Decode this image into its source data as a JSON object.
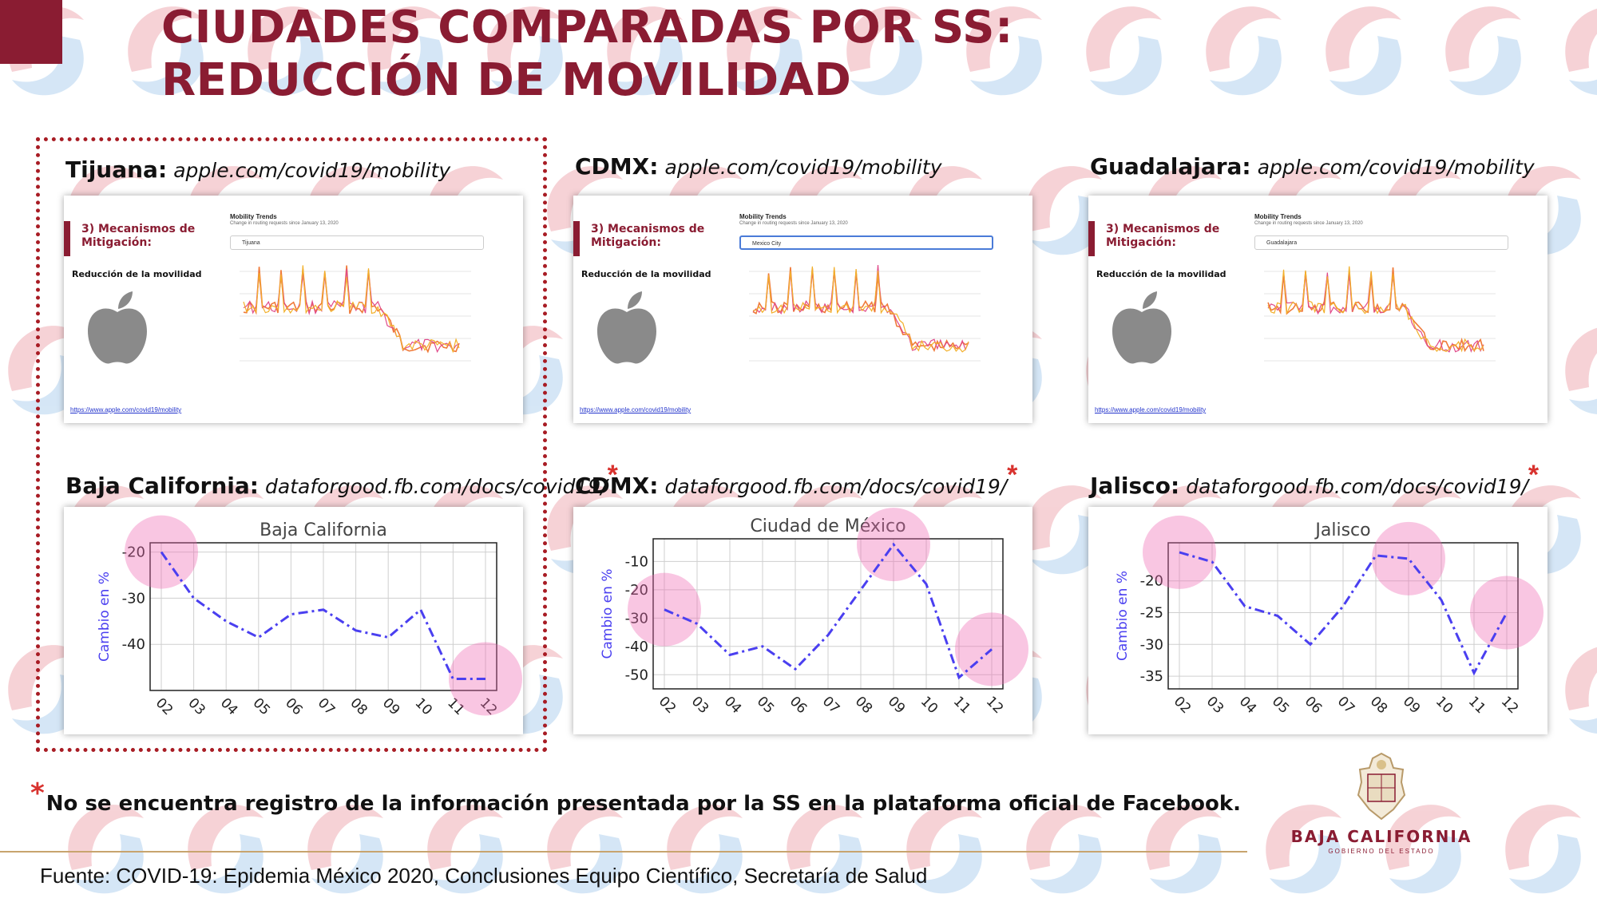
{
  "title_line1": "CIUDADES COMPARADAS POR SS:",
  "title_line2": "REDUCCIÓN DE MOVILIDAD",
  "shots": [
    {
      "city": "Tijuana:",
      "url": "apple.com/covid19/mobility",
      "section": "3) Mecanismos de Mitigación:",
      "subtitle": "Reducción de la movilidad",
      "trends_title": "Mobility Trends",
      "trends_sub": "Change in routing requests since January 13, 2020",
      "search": "Tijuana",
      "link": "https://www.apple.com/covid19/mobility"
    },
    {
      "city": "CDMX:",
      "url": "apple.com/covid19/mobility",
      "section": "3) Mecanismos de Mitigación:",
      "subtitle": "Reducción de la movilidad",
      "trends_title": "Mobility Trends",
      "trends_sub": "Change in routing requests since January 13, 2020",
      "search": "Mexico City",
      "link": "https://www.apple.com/covid19/mobility"
    },
    {
      "city": "Guadalajara:",
      "url": "apple.com/covid19/mobility",
      "section": "3) Mecanismos de Mitigación:",
      "subtitle": "Reducción de la movilidad",
      "trends_title": "Mobility Trends",
      "trends_sub": "Change in routing requests since January 13, 2020",
      "search": "Guadalajara",
      "link": "https://www.apple.com/covid19/mobility"
    }
  ],
  "fb_labels": [
    {
      "region": "Baja California:",
      "url": "dataforgood.fb.com/docs/covid19/",
      "mark": "*"
    },
    {
      "region": "CDMX:",
      "url": "dataforgood.fb.com/docs/covid19/",
      "mark": "*"
    },
    {
      "region": "Jalisco:",
      "url": "dataforgood.fb.com/docs/covid19/",
      "mark": "*"
    }
  ],
  "chart_data": [
    {
      "type": "line",
      "title": "Baja California",
      "ylabel": "Cambio en %",
      "x": [
        "02",
        "03",
        "04",
        "05",
        "06",
        "07",
        "08",
        "09",
        "10",
        "11",
        "12"
      ],
      "values": [
        -20,
        -30,
        -35,
        -38.5,
        -33.5,
        -32.5,
        -37,
        -38.5,
        -32.5,
        -47.5,
        -47.5
      ],
      "ylim": [
        -50,
        -18
      ],
      "yticks": [
        -20,
        -30,
        -40
      ],
      "grid": true,
      "highlights": [
        0,
        10
      ],
      "color": "#4a3ff0"
    },
    {
      "type": "line",
      "title": "Ciudad de México",
      "ylabel": "Cambio en %",
      "x": [
        "02",
        "03",
        "04",
        "05",
        "06",
        "07",
        "08",
        "09",
        "10",
        "11",
        "12"
      ],
      "values": [
        -27,
        -32,
        -43,
        -40,
        -48,
        -36,
        -20,
        -4,
        -18,
        -51,
        -41
      ],
      "ylim": [
        -55,
        -2
      ],
      "yticks": [
        -10,
        -20,
        -30,
        -40,
        -50
      ],
      "grid": true,
      "highlights": [
        0,
        7,
        10
      ],
      "color": "#4a3ff0"
    },
    {
      "type": "line",
      "title": "Jalisco",
      "ylabel": "Cambio en %",
      "x": [
        "02",
        "03",
        "04",
        "05",
        "06",
        "07",
        "08",
        "09",
        "10",
        "11",
        "12"
      ],
      "values": [
        -15.5,
        -17,
        -24,
        -25.5,
        -30,
        -24,
        -16,
        -16.5,
        -23,
        -34.5,
        -25
      ],
      "ylim": [
        -37,
        -14
      ],
      "yticks": [
        -20,
        -25,
        -30,
        -35
      ],
      "grid": true,
      "highlights": [
        0,
        7,
        10
      ],
      "color": "#4a3ff0"
    }
  ],
  "footnote_mark": "*",
  "footnote": "No se encuentra registro de la información presentada por la SS en la plataforma oficial de Facebook.",
  "source": "Fuente: COVID-19: Epidemia México 2020, Conclusiones Equipo Científico, Secretaría de Salud",
  "logo_name": "BAJA CALIFORNIA",
  "logo_sub": "GOBIERNO DEL ESTADO",
  "colors": {
    "brand": "#8a1c32",
    "series": "#4a3ff0",
    "highlight": "#f06ab4",
    "asterisk": "#d8322e"
  }
}
